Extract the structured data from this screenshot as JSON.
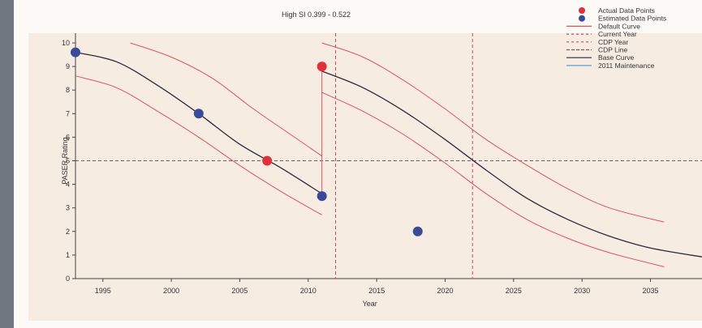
{
  "chart_data": {
    "type": "line",
    "title": "High SI   0.399 - 0.522",
    "xlabel": "Year",
    "ylabel": "PASER Rating",
    "xlim": [
      1993,
      2039
    ],
    "ylim": [
      0,
      10
    ],
    "xticks": [
      1995,
      2000,
      2005,
      2010,
      2015,
      2020,
      2025,
      2030,
      2035
    ],
    "yticks": [
      0,
      1,
      2,
      3,
      4,
      5,
      6,
      7,
      8,
      9,
      10
    ],
    "xtick_labels": [
      "1995",
      "2000",
      "2005",
      "2010",
      "2015",
      "2020",
      "2025",
      "2030",
      "2035"
    ],
    "ytick_labels": [
      "0",
      "1",
      "2",
      "3",
      "4",
      "5",
      "6",
      "7",
      "8",
      "9",
      "10"
    ],
    "colors": {
      "actual": "#e0303a",
      "estimated": "#3a4a9a",
      "default_curve": "#d85560",
      "current_year": "#d8404a",
      "cdp_year": "#c25058",
      "cdp_line": "#7a5a5a",
      "base_curve": "#2a2a3a",
      "maintenance": "#5aa0d0",
      "plot_bg": "#f7ece2"
    },
    "series": [
      {
        "name": "Actual Data Points",
        "kind": "points",
        "color_key": "actual",
        "points": [
          [
            2007,
            5.0
          ],
          [
            2011,
            9.0
          ]
        ]
      },
      {
        "name": "Estimated Data Points",
        "kind": "points",
        "color_key": "estimated",
        "points": [
          [
            1993,
            9.6
          ],
          [
            2002,
            7.0
          ],
          [
            2011,
            3.5
          ],
          [
            2018,
            2.0
          ]
        ]
      },
      {
        "name": "Base Curve",
        "kind": "line",
        "color_key": "base_curve",
        "segments": [
          [
            [
              1993,
              9.6
            ],
            [
              1996,
              9.2
            ],
            [
              1999,
              8.2
            ],
            [
              2002,
              7.0
            ],
            [
              2005,
              5.7
            ],
            [
              2008,
              4.7
            ],
            [
              2011,
              3.6
            ]
          ],
          [
            [
              2011,
              8.8
            ],
            [
              2014,
              8.1
            ],
            [
              2017,
              7.1
            ],
            [
              2020,
              5.9
            ],
            [
              2023,
              4.6
            ],
            [
              2026,
              3.4
            ],
            [
              2029,
              2.5
            ],
            [
              2032,
              1.8
            ],
            [
              2035,
              1.3
            ],
            [
              2039,
              0.9
            ]
          ]
        ]
      },
      {
        "name": "Default Curve",
        "kind": "line",
        "color_key": "default_curve",
        "segments": [
          [
            [
              1997,
              10.0
            ],
            [
              2000,
              9.4
            ],
            [
              2003,
              8.5
            ],
            [
              2006,
              7.2
            ],
            [
              2009,
              6.0
            ],
            [
              2011,
              5.2
            ]
          ],
          [
            [
              1993,
              8.6
            ],
            [
              1996,
              8.1
            ],
            [
              1999,
              7.1
            ],
            [
              2002,
              6.0
            ],
            [
              2005,
              4.8
            ],
            [
              2008,
              3.7
            ],
            [
              2011,
              2.7
            ]
          ],
          [
            [
              2011,
              10.0
            ],
            [
              2014,
              9.4
            ],
            [
              2017,
              8.4
            ],
            [
              2020,
              7.2
            ],
            [
              2023,
              5.9
            ],
            [
              2026,
              4.8
            ],
            [
              2029,
              3.8
            ],
            [
              2032,
              3.0
            ],
            [
              2036,
              2.4
            ]
          ],
          [
            [
              2011,
              7.9
            ],
            [
              2014,
              7.1
            ],
            [
              2017,
              6.1
            ],
            [
              2020,
              4.9
            ],
            [
              2023,
              3.6
            ],
            [
              2026,
              2.5
            ],
            [
              2029,
              1.7
            ],
            [
              2032,
              1.1
            ],
            [
              2036,
              0.5
            ]
          ]
        ]
      }
    ],
    "reference_lines": [
      {
        "name": "CDP Line",
        "orientation": "horizontal",
        "value": 5.0,
        "color_key": "cdp_line",
        "dash": "dashed"
      },
      {
        "name": "Current Year",
        "orientation": "vertical",
        "value": 2012,
        "color_key": "current_year",
        "dash": "dashed"
      },
      {
        "name": "CDP Year",
        "orientation": "vertical",
        "value": 2022,
        "color_key": "cdp_year",
        "dash": "dashed"
      }
    ],
    "legend": {
      "placement": "top-right",
      "entries": [
        {
          "label": "Actual Data Points",
          "marker": "dot",
          "color_key": "actual"
        },
        {
          "label": "Estimated Data Points",
          "marker": "dot",
          "color_key": "estimated"
        },
        {
          "label": "Default Curve",
          "marker": "solid",
          "color_key": "default_curve"
        },
        {
          "label": "Current Year",
          "marker": "dotted",
          "color_key": "current_year"
        },
        {
          "label": "CDP Year",
          "marker": "dotted",
          "color_key": "cdp_year"
        },
        {
          "label": "CDP Line",
          "marker": "dashed",
          "color_key": "cdp_line"
        },
        {
          "label": "Base Curve",
          "marker": "solid",
          "color_key": "base_curve"
        },
        {
          "label": "2011 Maintenance",
          "marker": "solid",
          "color_key": "maintenance"
        }
      ]
    }
  }
}
